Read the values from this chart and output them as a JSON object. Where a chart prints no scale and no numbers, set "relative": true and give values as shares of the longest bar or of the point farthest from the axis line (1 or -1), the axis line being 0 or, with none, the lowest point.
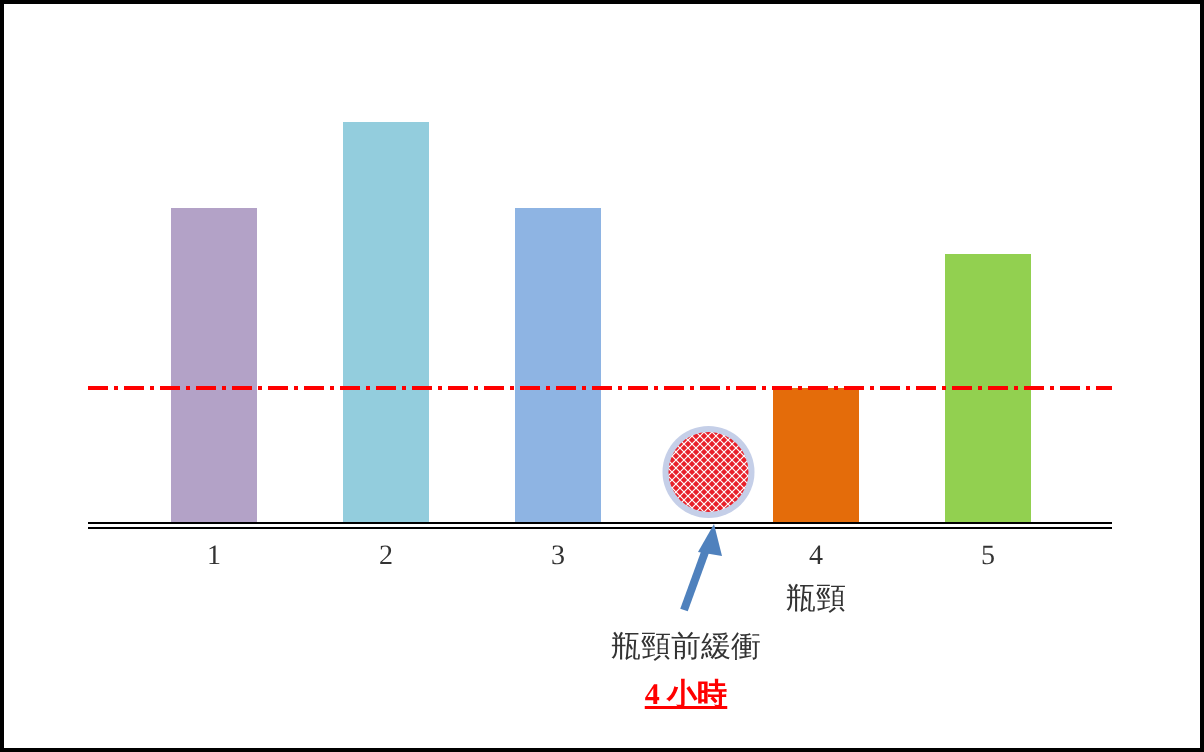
{
  "chart_data": {
    "type": "bar",
    "relative": true,
    "categories": [
      "1",
      null,
      "2",
      null,
      "3",
      null,
      null,
      "4",
      null,
      "5"
    ],
    "values": [
      0.785,
      null,
      1,
      null,
      0.785,
      null,
      null,
      0.335,
      null,
      0.67
    ],
    "colors": [
      "#b3a2c7",
      null,
      "#93cddd",
      null,
      "#8eb4e3",
      null,
      null,
      "#e46c0a",
      null,
      "#92d050"
    ],
    "ref_lines": [
      {
        "axis": "y",
        "value": 0.335,
        "color": "#ff0000",
        "line_style": "dashed"
      }
    ],
    "annotations": [
      "瓶頸",
      "瓶頸前緩衝",
      "4 小時"
    ]
  }
}
